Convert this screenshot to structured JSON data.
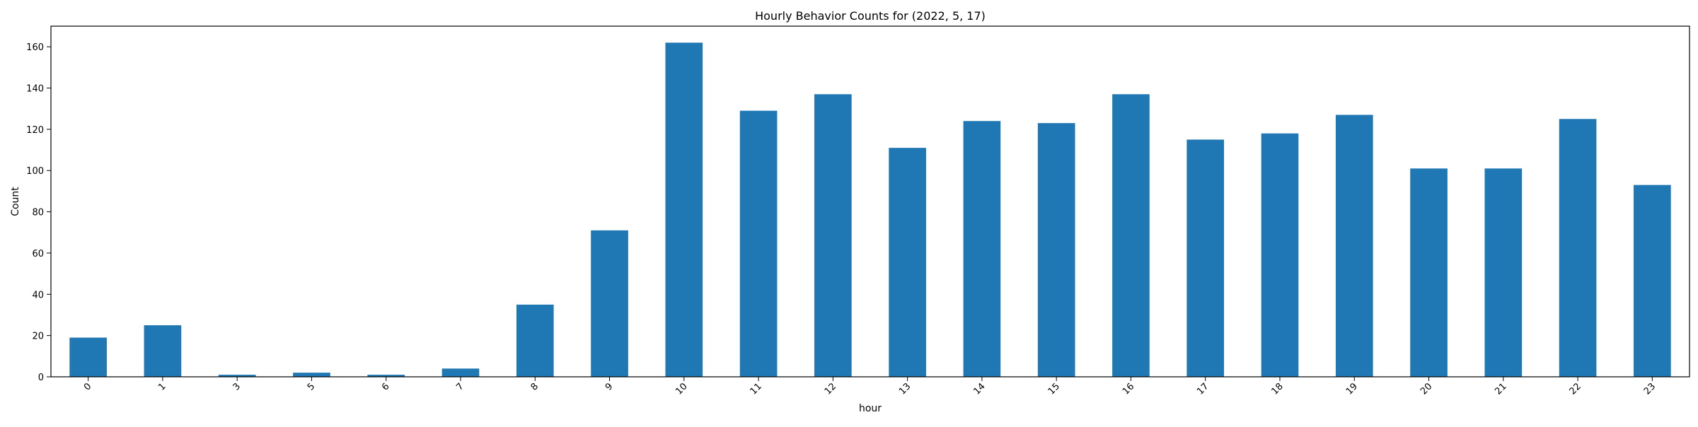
{
  "chart_data": {
    "type": "bar",
    "title": "Hourly Behavior Counts for (2022, 5, 17)",
    "xlabel": "hour",
    "ylabel": "Count",
    "categories": [
      "0",
      "1",
      "3",
      "5",
      "6",
      "7",
      "8",
      "9",
      "10",
      "11",
      "12",
      "13",
      "14",
      "15",
      "16",
      "17",
      "18",
      "19",
      "20",
      "21",
      "22",
      "23"
    ],
    "values": [
      19,
      25,
      1,
      2,
      1,
      4,
      35,
      71,
      162,
      129,
      137,
      111,
      124,
      123,
      137,
      115,
      118,
      127,
      101,
      101,
      125,
      93
    ],
    "ylim": [
      0,
      170
    ],
    "yticks": [
      0,
      20,
      40,
      60,
      80,
      100,
      120,
      140,
      160
    ],
    "grid": false,
    "legend": "none",
    "bar_color": "#1f77b4"
  }
}
